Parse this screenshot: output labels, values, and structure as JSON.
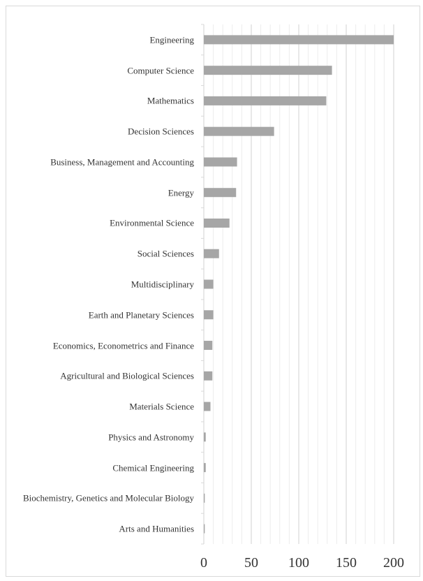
{
  "chart_data": {
    "type": "bar",
    "orientation": "horizontal",
    "categories": [
      "Engineering",
      "Computer Science",
      "Mathematics",
      "Decision Sciences",
      "Business, Management and Accounting",
      "Energy",
      "Environmental Science",
      "Social Sciences",
      "Multidisciplinary",
      "Earth and Planetary Sciences",
      "Economics, Econometrics and Finance",
      "Agricultural and Biological Sciences",
      "Materials Science",
      "Physics and Astronomy",
      "Chemical Engineering",
      "Biochemistry, Genetics and Molecular Biology",
      "Arts and Humanities"
    ],
    "values": [
      200,
      135,
      129,
      74,
      35,
      34,
      27,
      16,
      10,
      10,
      9,
      9,
      7,
      2,
      2,
      1,
      1
    ],
    "color": "#a6a6a6",
    "xlim": [
      0,
      200
    ],
    "xticks": [
      0,
      50,
      100,
      150,
      200
    ],
    "xminorticks": [
      10,
      20,
      30,
      40,
      60,
      70,
      80,
      90,
      110,
      120,
      130,
      140,
      160,
      170,
      180,
      190
    ],
    "grid": true
  }
}
